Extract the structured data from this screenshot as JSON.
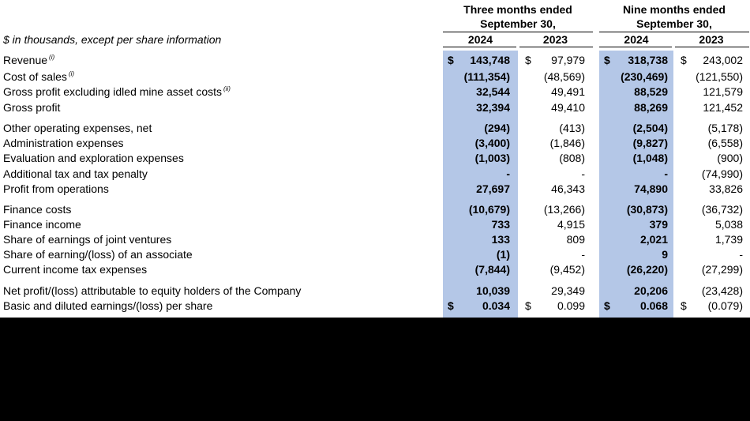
{
  "header": {
    "unit_note": "$ in thousands, except per share information",
    "groups": [
      {
        "line1": "Three months ended",
        "line2": "September 30,",
        "years": [
          "2024",
          "2023"
        ]
      },
      {
        "line1": "Nine months ended",
        "line2": "September 30,",
        "years": [
          "2024",
          "2023"
        ]
      }
    ]
  },
  "rows": [
    {
      "label": "Revenue",
      "note": "(i)",
      "c1_sym": "$",
      "c1": "143,748",
      "c2_sym": "$",
      "c2": "97,979",
      "c3_sym": "$",
      "c3": "318,738",
      "c4_sym": "$",
      "c4": "243,002"
    },
    {
      "label": "Cost of sales",
      "note": "(i)",
      "c1": "(111,354)",
      "c2": "(48,569)",
      "c3": "(230,469)",
      "c4": "(121,550)"
    },
    {
      "label": "Gross profit excluding idled mine asset costs",
      "note": "(ii)",
      "c1": "32,544",
      "c2": "49,491",
      "c3": "88,529",
      "c4": "121,579"
    },
    {
      "label": "Gross profit",
      "c1": "32,394",
      "c2": "49,410",
      "c3": "88,269",
      "c4": "121,452"
    },
    {
      "label": "Other operating expenses, net",
      "c1": "(294)",
      "c2": "(413)",
      "c3": "(2,504)",
      "c4": "(5,178)"
    },
    {
      "label": "Administration expenses",
      "c1": "(3,400)",
      "c2": "(1,846)",
      "c3": "(9,827)",
      "c4": "(6,558)"
    },
    {
      "label": "Evaluation and exploration expenses",
      "c1": "(1,003)",
      "c2": "(808)",
      "c3": "(1,048)",
      "c4": "(900)"
    },
    {
      "label": "Additional tax and tax penalty",
      "c1": "-",
      "c2": "-",
      "c3": "-",
      "c4": "(74,990)"
    },
    {
      "label": "Profit from operations",
      "c1": "27,697",
      "c2": "46,343",
      "c3": "74,890",
      "c4": "33,826"
    },
    {
      "label": "Finance costs",
      "c1": "(10,679)",
      "c2": "(13,266)",
      "c3": "(30,873)",
      "c4": "(36,732)"
    },
    {
      "label": "Finance income",
      "c1": "733",
      "c2": "4,915",
      "c3": "379",
      "c4": "5,038"
    },
    {
      "label": "Share of earnings of joint ventures",
      "c1": "133",
      "c2": "809",
      "c3": "2,021",
      "c4": "1,739"
    },
    {
      "label": "Share of earning/(loss) of an associate",
      "c1": "(1)",
      "c2": "-",
      "c3": "9",
      "c4": "-"
    },
    {
      "label": "Current income tax expenses",
      "c1": "(7,844)",
      "c2": "(9,452)",
      "c3": "(26,220)",
      "c4": "(27,299)"
    },
    {
      "label": "Net profit/(loss) attributable to equity holders of the Company",
      "c1": "10,039",
      "c2": "29,349",
      "c3": "20,206",
      "c4": "(23,428)"
    },
    {
      "label": "Basic and diluted earnings/(loss) per share",
      "c1_sym": "$",
      "c1": "0.034",
      "c2_sym": "$",
      "c2": "0.099",
      "c3_sym": "$",
      "c3": "0.068",
      "c4_sym": "$",
      "c4": "(0.079)"
    }
  ]
}
